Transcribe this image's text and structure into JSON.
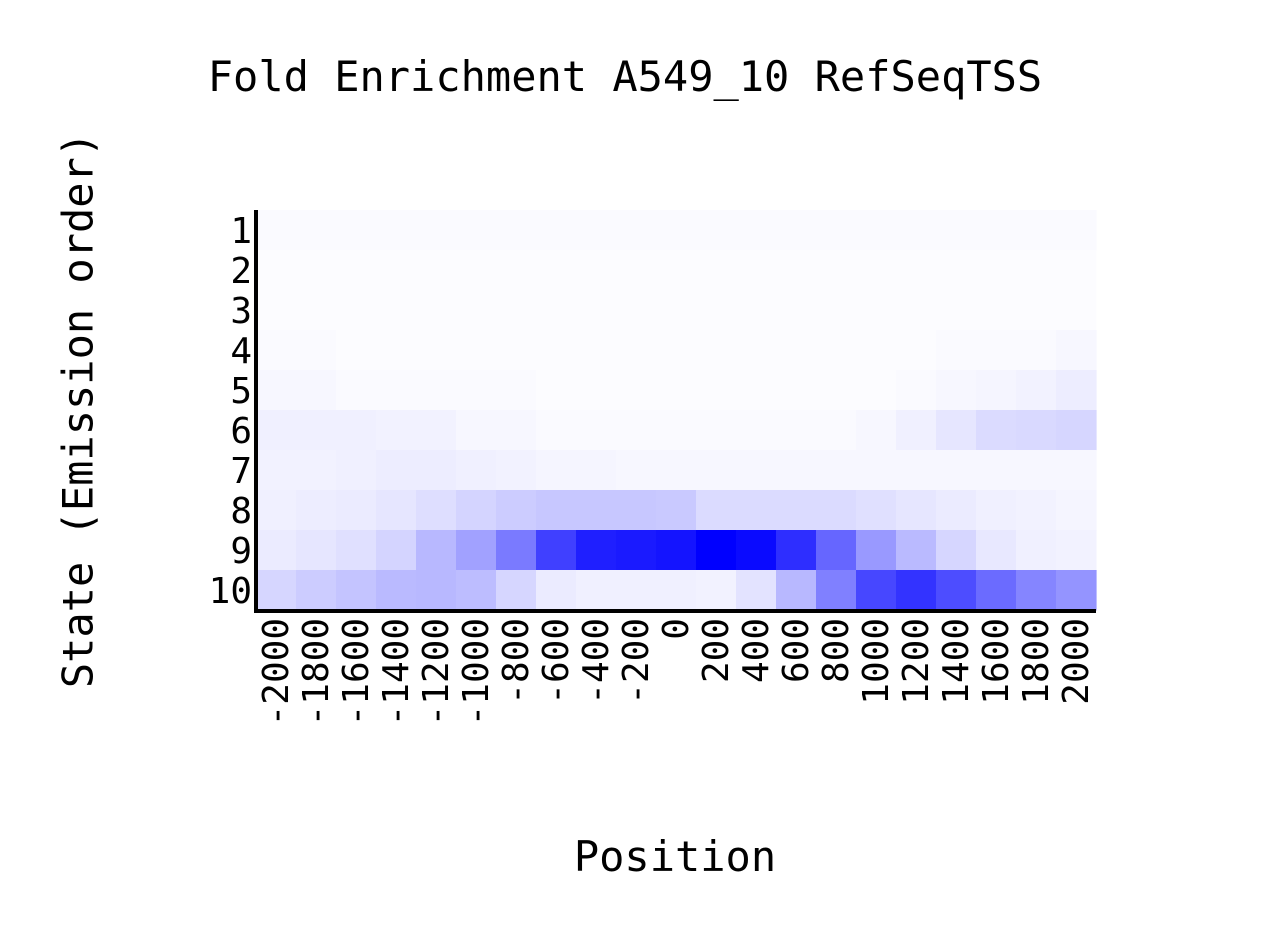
{
  "chart_data": {
    "type": "heatmap",
    "title": "Fold Enrichment A549_10 RefSeqTSS",
    "xlabel": "Position",
    "ylabel": "State (Emission order)",
    "x": [
      "-2000",
      "-1800",
      "-1600",
      "-1400",
      "-1200",
      "-1000",
      "-800",
      "-600",
      "-400",
      "-200",
      "0",
      "200",
      "400",
      "600",
      "800",
      "1000",
      "1200",
      "1400",
      "1600",
      "1800",
      "2000"
    ],
    "y": [
      "1",
      "2",
      "3",
      "4",
      "5",
      "6",
      "7",
      "8",
      "9",
      "10"
    ],
    "colormap": {
      "low": "#ffffff",
      "high": "#0000ff"
    },
    "values": [
      [
        0.02,
        0.02,
        0.02,
        0.02,
        0.02,
        0.02,
        0.02,
        0.02,
        0.02,
        0.02,
        0.02,
        0.02,
        0.02,
        0.02,
        0.02,
        0.02,
        0.02,
        0.02,
        0.02,
        0.02,
        0.02
      ],
      [
        0.01,
        0.01,
        0.01,
        0.01,
        0.01,
        0.01,
        0.01,
        0.01,
        0.01,
        0.01,
        0.01,
        0.01,
        0.01,
        0.01,
        0.01,
        0.01,
        0.01,
        0.01,
        0.01,
        0.01,
        0.01
      ],
      [
        0.01,
        0.01,
        0.01,
        0.01,
        0.01,
        0.01,
        0.01,
        0.01,
        0.01,
        0.01,
        0.01,
        0.01,
        0.01,
        0.01,
        0.01,
        0.01,
        0.01,
        0.01,
        0.01,
        0.01,
        0.01
      ],
      [
        0.02,
        0.02,
        0.01,
        0.01,
        0.01,
        0.01,
        0.01,
        0.01,
        0.01,
        0.01,
        0.01,
        0.01,
        0.01,
        0.01,
        0.01,
        0.01,
        0.01,
        0.02,
        0.02,
        0.02,
        0.03
      ],
      [
        0.03,
        0.03,
        0.02,
        0.02,
        0.02,
        0.02,
        0.02,
        0.01,
        0.01,
        0.01,
        0.01,
        0.01,
        0.01,
        0.01,
        0.01,
        0.01,
        0.02,
        0.03,
        0.04,
        0.05,
        0.07
      ],
      [
        0.06,
        0.06,
        0.06,
        0.05,
        0.05,
        0.03,
        0.03,
        0.02,
        0.02,
        0.02,
        0.02,
        0.02,
        0.02,
        0.02,
        0.02,
        0.03,
        0.06,
        0.1,
        0.14,
        0.15,
        0.16
      ],
      [
        0.05,
        0.05,
        0.06,
        0.07,
        0.07,
        0.06,
        0.05,
        0.04,
        0.04,
        0.03,
        0.03,
        0.03,
        0.03,
        0.03,
        0.03,
        0.03,
        0.03,
        0.03,
        0.03,
        0.03,
        0.03
      ],
      [
        0.06,
        0.07,
        0.08,
        0.1,
        0.13,
        0.17,
        0.2,
        0.22,
        0.22,
        0.22,
        0.21,
        0.14,
        0.14,
        0.14,
        0.14,
        0.12,
        0.1,
        0.08,
        0.06,
        0.05,
        0.04
      ],
      [
        0.08,
        0.1,
        0.12,
        0.17,
        0.28,
        0.37,
        0.52,
        0.75,
        0.88,
        0.9,
        0.92,
        1.0,
        0.96,
        0.82,
        0.6,
        0.4,
        0.27,
        0.16,
        0.09,
        0.06,
        0.05
      ],
      [
        0.16,
        0.2,
        0.23,
        0.27,
        0.28,
        0.26,
        0.16,
        0.08,
        0.06,
        0.06,
        0.06,
        0.05,
        0.11,
        0.28,
        0.5,
        0.72,
        0.8,
        0.7,
        0.58,
        0.48,
        0.42
      ]
    ]
  }
}
